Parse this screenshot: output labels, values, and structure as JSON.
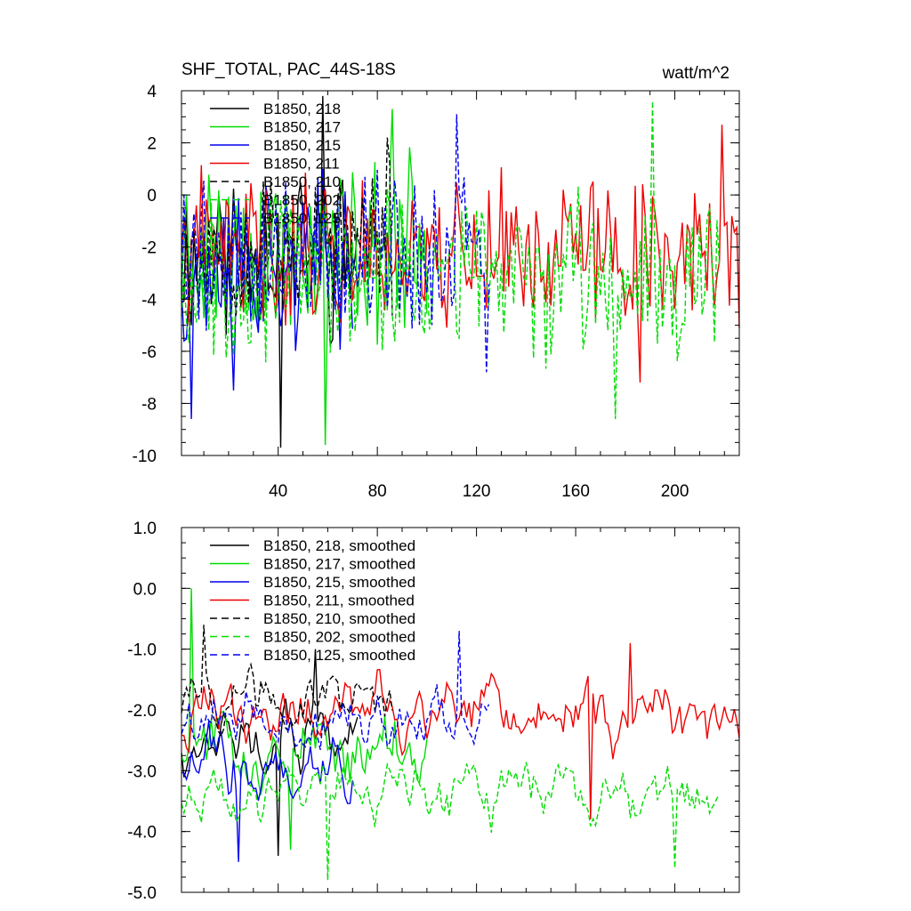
{
  "chart_data": [
    {
      "type": "line",
      "title": "SHF_TOTAL, PAC_44S-18S",
      "units": "watt/m^2",
      "xlim": [
        1,
        226
      ],
      "ylim": [
        -10,
        4
      ],
      "yticks": [
        4,
        2,
        0,
        -2,
        -4,
        -6,
        -8,
        -10
      ],
      "yticklabels": [
        "4",
        "2",
        "0",
        "-2",
        "-4",
        "-6",
        "-8",
        "-10"
      ],
      "xticks": [
        40,
        80,
        120,
        160,
        200
      ],
      "xticklabels": [
        "40",
        "80",
        "120",
        "160",
        "200"
      ],
      "legend": [
        "B1850, 218",
        "B1850, 217",
        "B1850, 215",
        "B1850, 211",
        "B1850, 210",
        "B1850, 202",
        "B1850, 125"
      ],
      "series": [
        {
          "name": "B1850, 218",
          "color": "#000000",
          "dash": "solid",
          "len": 72,
          "mean": -2.2,
          "amp": 5.2,
          "seed": 11,
          "extrema": [
            [
              41,
              -9.7
            ],
            [
              58,
              3.8
            ]
          ]
        },
        {
          "name": "B1850, 217",
          "color": "#00dd00",
          "dash": "solid",
          "len": 100,
          "mean": -2.0,
          "amp": 5.4,
          "seed": 23,
          "extrema": [
            [
              59,
              -9.6
            ],
            [
              86,
              3.3
            ]
          ]
        },
        {
          "name": "B1850, 215",
          "color": "#0000ee",
          "dash": "solid",
          "len": 70,
          "mean": -2.6,
          "amp": 5.2,
          "seed": 37,
          "extrema": [
            [
              5,
              -8.6
            ],
            [
              22,
              -7.5
            ]
          ]
        },
        {
          "name": "B1850, 211",
          "color": "#ee0000",
          "dash": "solid",
          "len": 226,
          "mean": -2.1,
          "amp": 4.6,
          "seed": 41,
          "extrema": [
            [
              186,
              -7.2
            ],
            [
              219,
              2.7
            ]
          ]
        },
        {
          "name": "B1850, 210",
          "color": "#000000",
          "dash": "dashed",
          "len": 86,
          "mean": -1.9,
          "amp": 4.6,
          "seed": 53,
          "extrema": [
            [
              84,
              2.2
            ]
          ]
        },
        {
          "name": "B1850, 202",
          "color": "#00dd00",
          "dash": "dashed",
          "len": 218,
          "mean": -3.1,
          "amp": 5.0,
          "seed": 67,
          "extrema": [
            [
              191,
              3.6
            ],
            [
              176,
              -8.6
            ]
          ]
        },
        {
          "name": "B1850, 125",
          "color": "#0000ee",
          "dash": "dashed",
          "len": 125,
          "mean": -2.2,
          "amp": 4.8,
          "seed": 79,
          "extrema": [
            [
              112,
              3.1
            ],
            [
              124,
              -6.8
            ]
          ]
        }
      ]
    },
    {
      "type": "line",
      "title": "",
      "xlim": [
        1,
        226
      ],
      "ylim": [
        -5,
        1
      ],
      "yticks": [
        1,
        0,
        -1,
        -2,
        -3,
        -4,
        -5
      ],
      "yticklabels": [
        "1.0",
        "0.0",
        "-1.0",
        "-2.0",
        "-3.0",
        "-4.0",
        "-5.0"
      ],
      "xticks": [
        40,
        80,
        120,
        160,
        200
      ],
      "xticklabels": [],
      "legend": [
        "B1850, 218, smoothed",
        "B1850, 217, smoothed",
        "B1850, 215, smoothed",
        "B1850, 211, smoothed",
        "B1850, 210, smoothed",
        "B1850, 202, smoothed",
        "B1850, 125, smoothed"
      ],
      "series": [
        {
          "name": "B1850, 218, smoothed",
          "color": "#000000",
          "dash": "solid",
          "len": 72,
          "mean": -2.5,
          "amp": 1.4,
          "seed": 12,
          "extrema": [
            [
              40,
              -4.4
            ],
            [
              55,
              -1.0
            ]
          ]
        },
        {
          "name": "B1850, 217, smoothed",
          "color": "#00dd00",
          "dash": "solid",
          "len": 100,
          "mean": -2.6,
          "amp": 1.5,
          "seed": 24,
          "extrema": [
            [
              5,
              0.0
            ],
            [
              45,
              -4.3
            ]
          ]
        },
        {
          "name": "B1850, 215, smoothed",
          "color": "#0000ee",
          "dash": "solid",
          "len": 70,
          "mean": -3.0,
          "amp": 1.4,
          "seed": 38,
          "extrema": [
            [
              24,
              -4.5
            ]
          ]
        },
        {
          "name": "B1850, 211, smoothed",
          "color": "#ee0000",
          "dash": "solid",
          "len": 226,
          "mean": -2.1,
          "amp": 1.3,
          "seed": 42,
          "extrema": [
            [
              166,
              -3.8
            ],
            [
              182,
              -0.9
            ]
          ]
        },
        {
          "name": "B1850, 210, smoothed",
          "color": "#000000",
          "dash": "dashed",
          "len": 86,
          "mean": -1.8,
          "amp": 1.2,
          "seed": 54,
          "extrema": [
            [
              10,
              -0.6
            ]
          ]
        },
        {
          "name": "B1850, 202, smoothed",
          "color": "#00dd00",
          "dash": "dashed",
          "len": 218,
          "mean": -3.4,
          "amp": 1.2,
          "seed": 68,
          "extrema": [
            [
              60,
              -4.8
            ],
            [
              200,
              -4.6
            ]
          ]
        },
        {
          "name": "B1850, 125, smoothed",
          "color": "#0000ee",
          "dash": "dashed",
          "len": 125,
          "mean": -2.3,
          "amp": 1.2,
          "seed": 80,
          "extrema": [
            [
              113,
              -0.7
            ]
          ]
        }
      ]
    }
  ]
}
